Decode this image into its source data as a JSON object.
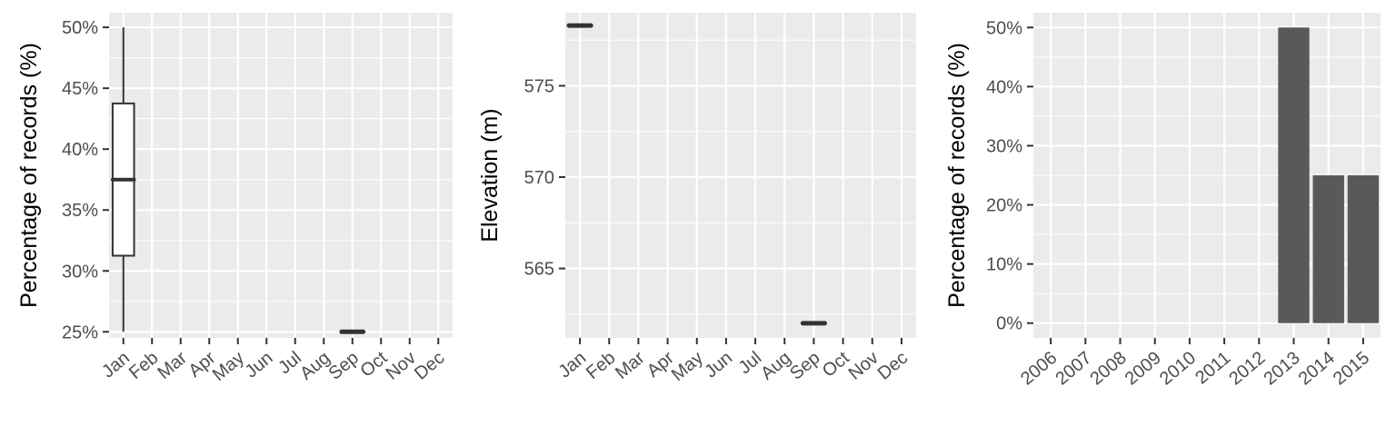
{
  "chart_data": [
    {
      "type": "boxplot",
      "title": "",
      "xlabel": "",
      "ylabel": "Percentage of records (%)",
      "categories": [
        "Jan",
        "Feb",
        "Mar",
        "Apr",
        "May",
        "Jun",
        "Jul",
        "Aug",
        "Sep",
        "Oct",
        "Nov",
        "Dec"
      ],
      "ylim": [
        24.5,
        51.2
      ],
      "yticks": [
        25,
        30,
        35,
        40,
        45,
        50
      ],
      "ytick_labels": [
        "25%",
        "30%",
        "35%",
        "40%",
        "45%",
        "50%"
      ],
      "grid": true,
      "boxes": [
        {
          "category": "Jan",
          "min": 25,
          "q1": 31.25,
          "median": 37.5,
          "q3": 43.75,
          "max": 50
        },
        {
          "category": "Sep",
          "min": 25,
          "q1": 25,
          "median": 25,
          "q3": 25,
          "max": 25
        }
      ]
    },
    {
      "type": "boxplot",
      "title": "",
      "xlabel": "",
      "ylabel": "Elevation (m)",
      "categories": [
        "Jan",
        "Feb",
        "Mar",
        "Apr",
        "May",
        "Jun",
        "Jul",
        "Aug",
        "Sep",
        "Oct",
        "Nov",
        "Dec"
      ],
      "ylim": [
        561.2,
        579.0
      ],
      "yticks": [
        565,
        570,
        575
      ],
      "ytick_labels": [
        "565",
        "570",
        "575"
      ],
      "grid": true,
      "boxes": [
        {
          "category": "Jan",
          "min": 578.3,
          "q1": 578.3,
          "median": 578.3,
          "q3": 578.3,
          "max": 578.3
        },
        {
          "category": "Sep",
          "min": 562.0,
          "q1": 562.0,
          "median": 562.0,
          "q3": 562.0,
          "max": 562.0
        }
      ]
    },
    {
      "type": "bar",
      "title": "",
      "xlabel": "",
      "ylabel": "Percentage of records (%)",
      "categories": [
        "2006",
        "2007",
        "2008",
        "2009",
        "2010",
        "2011",
        "2012",
        "2013",
        "2014",
        "2015"
      ],
      "values": [
        0,
        0,
        0,
        0,
        0,
        0,
        0,
        50,
        25,
        25
      ],
      "ylim": [
        -2.5,
        52.5
      ],
      "yticks": [
        0,
        10,
        20,
        30,
        40,
        50
      ],
      "ytick_labels": [
        "0%",
        "10%",
        "20%",
        "30%",
        "40%",
        "50%"
      ],
      "grid": true,
      "bar_color": "#595959"
    }
  ]
}
